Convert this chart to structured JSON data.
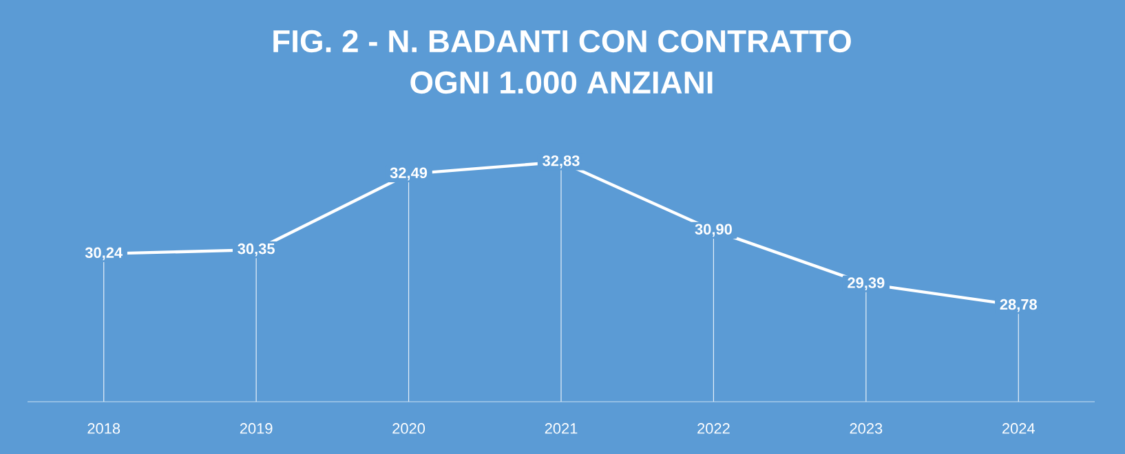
{
  "chart_data": {
    "type": "line",
    "title": "FIG. 2 - N. BADANTI CON CONTRATTO",
    "subtitle": "OGNI 1.000 ANZIANI",
    "categories": [
      "2018",
      "2019",
      "2020",
      "2021",
      "2022",
      "2023",
      "2024"
    ],
    "values": [
      30.24,
      30.35,
      32.49,
      32.83,
      30.9,
      29.39,
      28.78
    ],
    "value_labels": [
      "30,24",
      "30,35",
      "32,49",
      "32,83",
      "30,90",
      "29,39",
      "28,78"
    ],
    "color": "#ffffff",
    "grid": "x",
    "marker": "square"
  }
}
